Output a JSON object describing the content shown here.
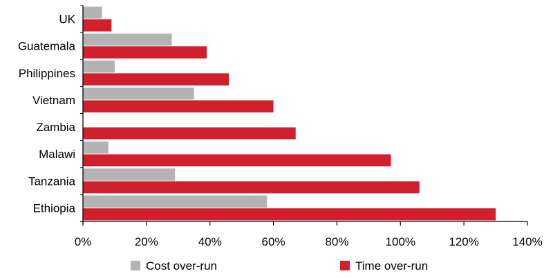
{
  "chart_data": {
    "type": "bar",
    "orientation": "horizontal",
    "categories": [
      "UK",
      "Guatemala",
      "Philippines",
      "Vietnam",
      "Zambia",
      "Malawi",
      "Tanzania",
      "Ethiopia"
    ],
    "series": [
      {
        "name": "Cost over-run",
        "values": [
          6,
          28,
          10,
          35,
          0,
          8,
          29,
          58
        ],
        "color": "#b3b3b3"
      },
      {
        "name": "Time over-run",
        "values": [
          9,
          39,
          46,
          60,
          67,
          97,
          106,
          130
        ],
        "color": "#d0202e"
      }
    ],
    "xlim": [
      0,
      140
    ],
    "xticks": [
      0,
      20,
      40,
      60,
      80,
      100,
      120,
      140
    ],
    "tick_format": "percent",
    "grid": false,
    "legend_position": "bottom"
  }
}
